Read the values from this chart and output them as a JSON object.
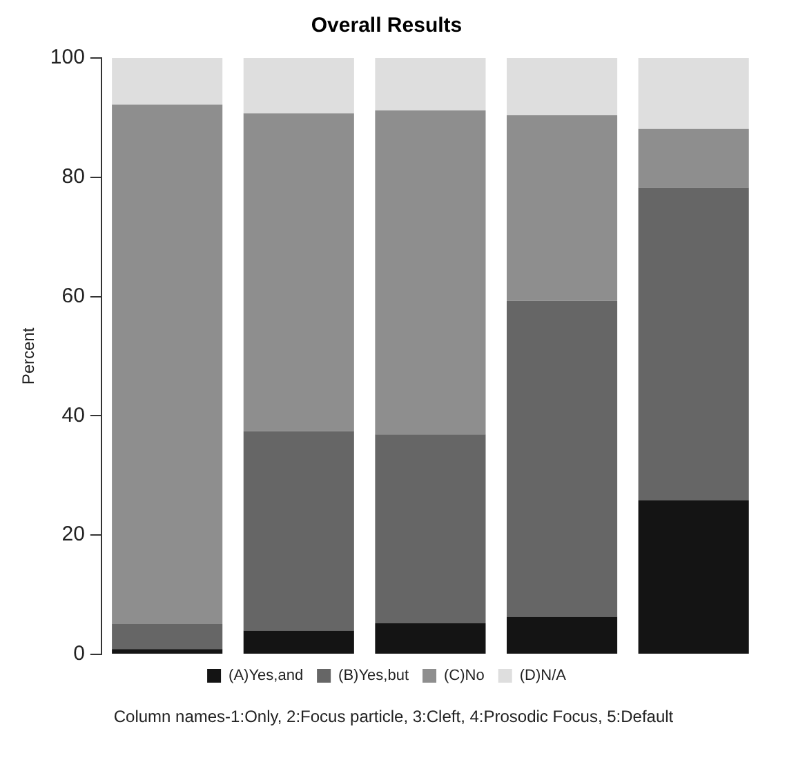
{
  "chart_data": {
    "type": "bar",
    "title": "Overall Results",
    "ylabel": "Percent",
    "categories": [
      null,
      null,
      null,
      null,
      null
    ],
    "stacked": true,
    "series": [
      {
        "name": "(A)Yes,and",
        "color": "#141414",
        "values": [
          0.9,
          4.0,
          5.2,
          6.3,
          25.8
        ]
      },
      {
        "name": "(B)Yes,but",
        "color": "#666666",
        "values": [
          4.2,
          33.4,
          31.7,
          53.0,
          52.5
        ]
      },
      {
        "name": "(C)No",
        "color": "#8e8e8e",
        "values": [
          87.1,
          53.3,
          54.3,
          31.1,
          9.8
        ]
      },
      {
        "name": "(D)N/A",
        "color": "#dedede",
        "values": [
          7.8,
          9.3,
          8.8,
          9.6,
          11.9
        ]
      }
    ],
    "ylim": [
      0,
      100
    ],
    "yticks": [
      0,
      20,
      40,
      60,
      80,
      100
    ],
    "tick_labels": "y",
    "legend": "bottom",
    "annotations": [
      "Column names-1:Only, 2:Focus particle, 3:Cleft, 4:Prosodic Focus, 5:Default"
    ]
  }
}
